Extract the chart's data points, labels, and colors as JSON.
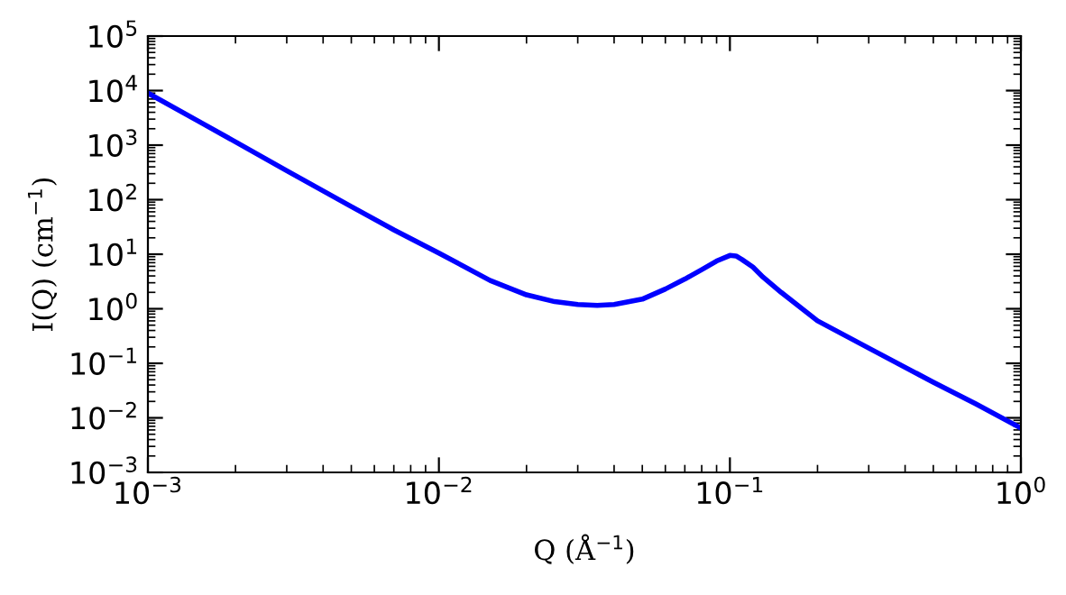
{
  "chart_data": {
    "type": "line",
    "xlabel": "Q (Å$^{−1}$)",
    "ylabel": "I(Q) (cm$^{−1}$)",
    "log": "xy",
    "grid": false,
    "marker": "none",
    "line_style": "solid",
    "series": [
      {
        "color": "#0000ff",
        "x": [
          0.001,
          0.0015,
          0.002,
          0.003,
          0.005,
          0.007,
          0.01,
          0.015,
          0.02,
          0.025,
          0.03,
          0.035,
          0.04,
          0.05,
          0.06,
          0.07,
          0.08,
          0.09,
          0.1,
          0.105,
          0.11,
          0.12,
          0.13,
          0.15,
          0.2,
          0.3,
          0.5,
          0.7,
          1.0
        ],
        "values": [
          9000,
          2700,
          1150,
          340,
          75,
          28,
          10.5,
          3.3,
          1.8,
          1.35,
          1.2,
          1.15,
          1.2,
          1.5,
          2.3,
          3.5,
          5.2,
          7.5,
          9.5,
          9.3,
          8.0,
          5.8,
          3.8,
          2.0,
          0.6,
          0.19,
          0.045,
          0.018,
          0.0065
        ]
      }
    ],
    "xlim": [
      0.001,
      1.0
    ],
    "ylim": [
      0.001,
      100000
    ],
    "xticks": [
      {
        "value": 0.001,
        "label": "10$^{−3}$"
      },
      {
        "value": 0.01,
        "label": "10$^{−2}$"
      },
      {
        "value": 0.1,
        "label": "10$^{−1}$"
      },
      {
        "value": 1,
        "label": "10$^{0}$"
      }
    ],
    "yticks": [
      {
        "value": 0.001,
        "label": "10$^{−3}$"
      },
      {
        "value": 0.01,
        "label": "10$^{−2}$"
      },
      {
        "value": 0.1,
        "label": "10$^{−1}$"
      },
      {
        "value": 1,
        "label": "10$^{0}$"
      },
      {
        "value": 10,
        "label": "10$^{1}$"
      },
      {
        "value": 100,
        "label": "10$^{2}$"
      },
      {
        "value": 1000,
        "label": "10$^{3}$"
      },
      {
        "value": 10000,
        "label": "10$^{4}$"
      },
      {
        "value": 100000,
        "label": "10$^{5}$"
      }
    ]
  }
}
